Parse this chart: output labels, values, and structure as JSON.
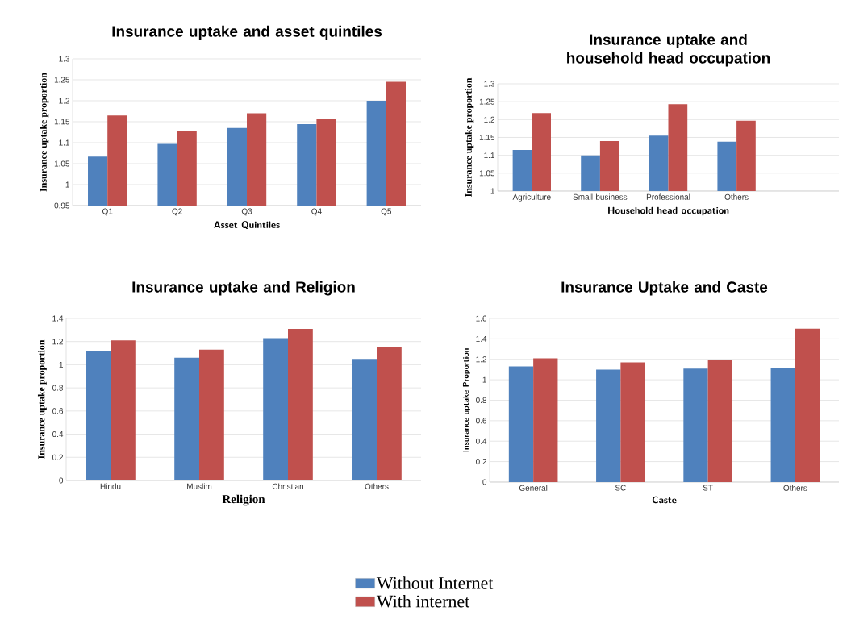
{
  "chart_data": [
    {
      "type": "bar",
      "title": "Insurance uptake and asset quintiles",
      "xlabel": "Asset Quintiles",
      "ylabel": "Insurance uptake proportion",
      "categories": [
        "Q1",
        "Q2",
        "Q3",
        "Q4",
        "Q5"
      ],
      "series": [
        {
          "color": "#4f81bd",
          "values": [
            1.067,
            1.097,
            1.135,
            1.144,
            1.2
          ]
        },
        {
          "color": "#c0504d",
          "values": [
            1.165,
            1.129,
            1.17,
            1.157,
            1.245
          ]
        }
      ],
      "ylim": [
        0.95,
        1.3
      ],
      "yticks": [
        0.95,
        1,
        1.05,
        1.1,
        1.15,
        1.2,
        1.25,
        1.3
      ],
      "grid": "y"
    },
    {
      "type": "bar",
      "title": "Insurance uptake and household head occupation",
      "xlabel": "Household head occupation",
      "ylabel": "Insurance uptake proportion",
      "categories": [
        "Agriculture",
        "Small business",
        "Professional",
        "Others",
        null
      ],
      "series": [
        {
          "color": "#4f81bd",
          "values": [
            1.115,
            1.1,
            1.155,
            1.138,
            null
          ]
        },
        {
          "color": "#c0504d",
          "values": [
            1.218,
            1.14,
            1.243,
            1.197,
            null
          ]
        }
      ],
      "ylim": [
        1,
        1.3
      ],
      "yticks": [
        1,
        1.05,
        1.1,
        1.15,
        1.2,
        1.25,
        1.3
      ],
      "grid": "y"
    },
    {
      "type": "bar",
      "title": "Insurance uptake and Religion",
      "xlabel": "Religion",
      "ylabel": "Insurance uptake proportion",
      "categories": [
        "Hindu",
        "Muslim",
        "Christian",
        "Others"
      ],
      "series": [
        {
          "color": "#4f81bd",
          "values": [
            1.12,
            1.06,
            1.23,
            1.05
          ]
        },
        {
          "color": "#c0504d",
          "values": [
            1.21,
            1.13,
            1.31,
            1.15
          ]
        }
      ],
      "ylim": [
        0,
        1.4
      ],
      "yticks": [
        0,
        0.2,
        0.4,
        0.6,
        0.8,
        1,
        1.2,
        1.4
      ],
      "grid": "y"
    },
    {
      "type": "bar",
      "title": "Insurance Uptake and Caste",
      "xlabel": "Caste",
      "ylabel": "Insurance uptake Proportion",
      "categories": [
        "General",
        "SC",
        "ST",
        "Others"
      ],
      "series": [
        {
          "name": "Without Internet",
          "color": "#4f81bd",
          "values": [
            1.13,
            1.1,
            1.11,
            1.12
          ]
        },
        {
          "name": "With internet",
          "color": "#c0504d",
          "values": [
            1.21,
            1.17,
            1.19,
            1.5
          ]
        }
      ],
      "ylim": [
        0,
        1.6
      ],
      "yticks": [
        0,
        0.2,
        0.4,
        0.6,
        0.8,
        1,
        1.2,
        1.4,
        1.6
      ],
      "grid": "y",
      "legend": "bottom"
    }
  ]
}
